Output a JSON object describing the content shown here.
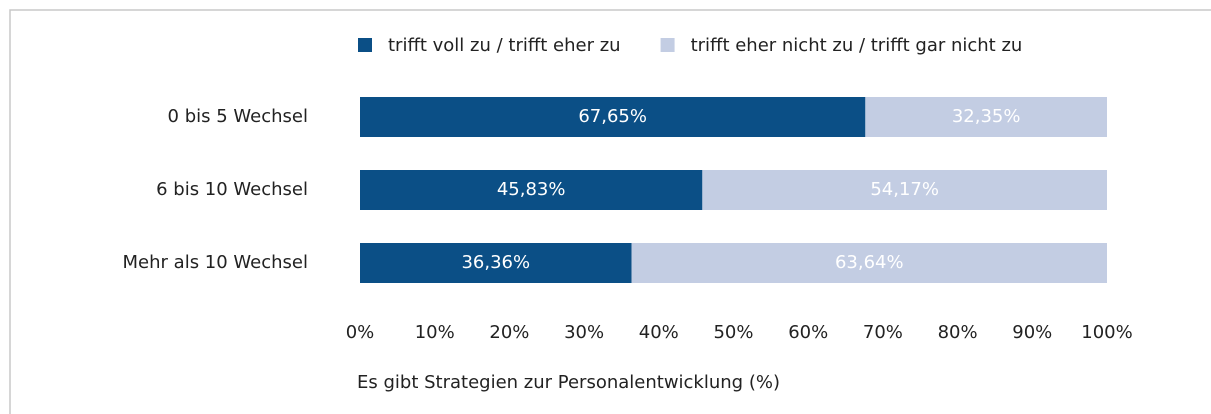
{
  "chart_data": {
    "type": "stacked_bar_horizontal",
    "categories": [
      "0 bis 5 Wechsel",
      "6 bis 10 Wechsel",
      "Mehr als 10 Wechsel"
    ],
    "series": [
      {
        "name": "trifft voll zu / trifft eher zu",
        "color": "#0b4f86",
        "values": [
          67.65,
          45.83,
          36.36
        ],
        "value_labels": [
          "67,65%",
          "45,83%",
          "36,36%"
        ]
      },
      {
        "name": "trifft eher nicht zu / trifft gar nicht zu",
        "color": "#c3cde3",
        "values": [
          32.35,
          54.17,
          63.64
        ],
        "value_labels": [
          "32,35%",
          "54,17%",
          "63,64%"
        ]
      }
    ],
    "xlim": [
      0,
      100
    ],
    "xticks": [
      {
        "value": 0,
        "label": "0%"
      },
      {
        "value": 10,
        "label": "10%"
      },
      {
        "value": 20,
        "label": "20%"
      },
      {
        "value": 30,
        "label": "30%"
      },
      {
        "value": 40,
        "label": "40%"
      },
      {
        "value": 50,
        "label": "50%"
      },
      {
        "value": 60,
        "label": "60%"
      },
      {
        "value": 70,
        "label": "70%"
      },
      {
        "value": 80,
        "label": "80%"
      },
      {
        "value": 90,
        "label": "90%"
      },
      {
        "value": 100,
        "label": "100%"
      }
    ],
    "xlabel": "Es gibt Strategien zur Personalentwicklung (%)",
    "legend": "top",
    "grid": false
  }
}
